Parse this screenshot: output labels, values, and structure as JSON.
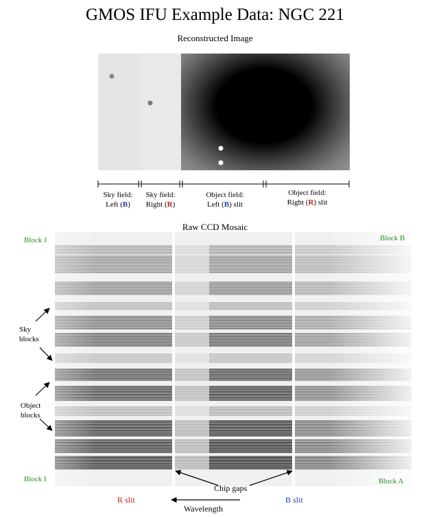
{
  "title": "GMOS IFU Example Data: NGC 221",
  "reconstructed_image": {
    "caption": "Reconstructed Image",
    "segments": [
      {
        "line1": "Sky field:",
        "line2_pre": "Left (",
        "letter": "B",
        "line2_post": ")",
        "color": "#1f3fb0"
      },
      {
        "line1": "Sky field:",
        "line2_pre": "Right (",
        "letter": "R",
        "line2_post": ")",
        "color": "#c01818"
      },
      {
        "line1": "Object field:",
        "line2_pre": "Left (",
        "letter": "B",
        "line2_post": ") slit",
        "color": "#1f3fb0"
      },
      {
        "line1": "Object field:",
        "line2_pre": "Right (",
        "letter": "R",
        "line2_post": ") slit",
        "color": "#c01818"
      }
    ]
  },
  "ccd_mosaic": {
    "caption": "Raw CCD Mosaic",
    "block_labels": {
      "top_left": "Block J",
      "top_right": "Block B",
      "bottom_left": "Block I",
      "bottom_right": "Block A"
    },
    "sky_label": {
      "line1": "Sky",
      "line2": "blocks"
    },
    "object_label": {
      "line1": "Object",
      "line2": "blocks"
    },
    "chip_gaps_label": "Chip gaps",
    "r_slit_label": "R slit",
    "b_slit_label": "B slit",
    "wavelength_label": "Wavelength",
    "colors": {
      "block_label": "#2b8a2b",
      "r_slit": "#c01818",
      "b_slit": "#1f3fb0"
    }
  }
}
